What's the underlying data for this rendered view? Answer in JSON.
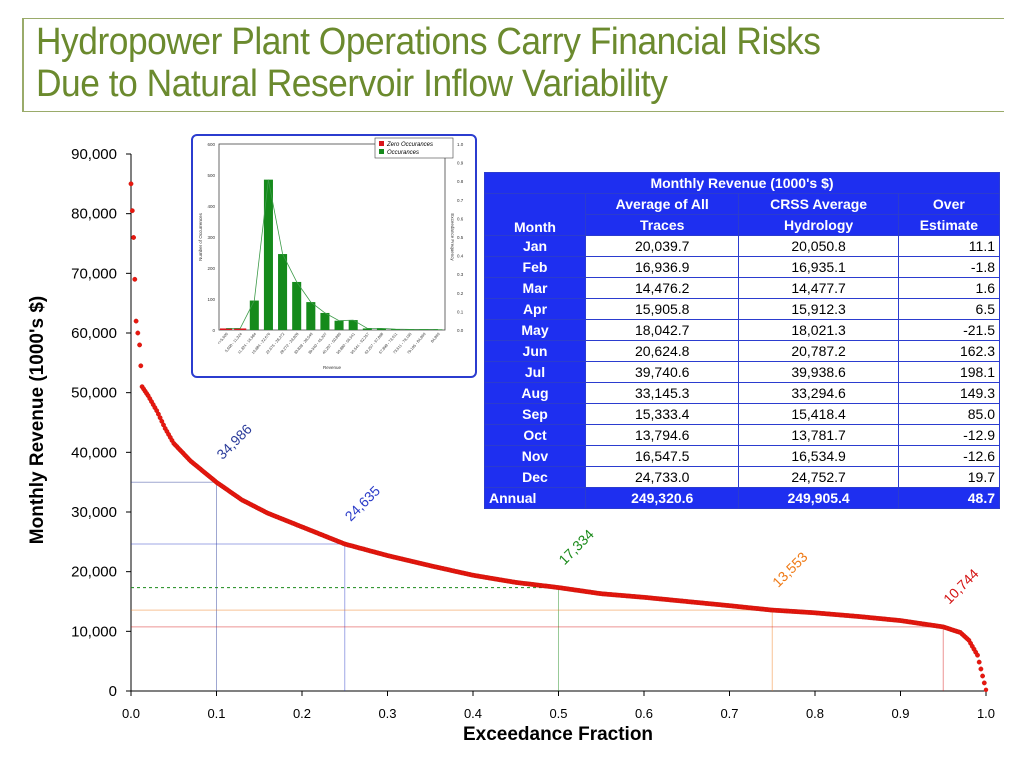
{
  "title": {
    "line1": "Hydropower Plant Operations Carry Financial Risks",
    "line2": "Due to Natural Reservoir Inflow Variability"
  },
  "colors": {
    "title": "#6b8a2e",
    "curve": "#e8170f",
    "table_header": "#1e2ff0",
    "inset_bar": "#158a1b",
    "inset_zero_bar": "#d9151b"
  },
  "chart_data": [
    {
      "type": "scatter",
      "xlabel": "Exceedance Fraction",
      "ylabel": "Monthly Revenue (1000's $)",
      "xlim": [
        0.0,
        1.0
      ],
      "ylim": [
        0,
        90000
      ],
      "x_ticks": [
        "0.0",
        "0.1",
        "0.2",
        "0.3",
        "0.4",
        "0.5",
        "0.6",
        "0.7",
        "0.8",
        "0.9",
        "1.0"
      ],
      "y_ticks": [
        "0",
        "10,000",
        "20,000",
        "30,000",
        "40,000",
        "50,000",
        "60,000",
        "70,000",
        "80,000",
        "90,000"
      ],
      "grid": false,
      "curve_points": [
        [
          0.0,
          85000
        ],
        [
          0.003,
          76000
        ],
        [
          0.006,
          62000
        ],
        [
          0.01,
          58000
        ],
        [
          0.013,
          51000
        ],
        [
          0.02,
          49500
        ],
        [
          0.03,
          47000
        ],
        [
          0.04,
          44000
        ],
        [
          0.05,
          41500
        ],
        [
          0.07,
          38500
        ],
        [
          0.1,
          34986
        ],
        [
          0.13,
          32000
        ],
        [
          0.16,
          29800
        ],
        [
          0.2,
          27500
        ],
        [
          0.25,
          24635
        ],
        [
          0.3,
          22700
        ],
        [
          0.35,
          21000
        ],
        [
          0.4,
          19400
        ],
        [
          0.45,
          18200
        ],
        [
          0.5,
          17334
        ],
        [
          0.55,
          16300
        ],
        [
          0.6,
          15700
        ],
        [
          0.65,
          15000
        ],
        [
          0.7,
          14300
        ],
        [
          0.75,
          13553
        ],
        [
          0.8,
          13100
        ],
        [
          0.85,
          12500
        ],
        [
          0.9,
          11800
        ],
        [
          0.95,
          10744
        ],
        [
          0.97,
          9800
        ],
        [
          0.98,
          8500
        ],
        [
          0.99,
          6000
        ],
        [
          1.0,
          200
        ]
      ],
      "annotations": [
        {
          "label": "34,986",
          "x": 0.1,
          "y": 34986,
          "color": "#2b3c9a"
        },
        {
          "label": "24,635",
          "x": 0.25,
          "y": 24635,
          "color": "#2b3cc8"
        },
        {
          "label": "17,334",
          "x": 0.5,
          "y": 17334,
          "color": "#1a8a1a"
        },
        {
          "label": "13,553",
          "x": 0.75,
          "y": 13553,
          "color": "#ef7a16"
        },
        {
          "label": "10,744",
          "x": 0.95,
          "y": 10744,
          "color": "#d41212"
        }
      ]
    },
    {
      "type": "bar",
      "xlabel": "Revenue",
      "ylabel": "Number of Occurrences",
      "y2label": "Exceedance Frequency",
      "legend": [
        "Zero Occurances",
        "Occurances"
      ],
      "legend_position": "top-right",
      "ylim": [
        0,
        600
      ],
      "y_ticks": [
        "0",
        "100",
        "200",
        "300",
        "400",
        "500",
        "600"
      ],
      "y2_ticks": [
        "0.0",
        "0.1",
        "0.2",
        "0.3",
        "0.4",
        "0.5",
        "0.6",
        "0.7",
        "0.8",
        "0.9",
        "1.0"
      ],
      "categories": [
        "<=5,600",
        "5,600 - 11,324",
        "11,324 - 16,984",
        "16,984 - 22,676",
        "22,676 - 28,272",
        "28,272 - 33,828",
        "33,828 - 39,540",
        "39,540 - 45,207",
        "45,207 - 50,880",
        "50,880 - 56,541",
        "56,541 - 62,257",
        "62,257 - 67,898",
        "67,898 - 73,611",
        "73,611 - 79,195",
        "79,195 - 84,860",
        "84,860"
      ],
      "zero_values": [
        5,
        5,
        0,
        0,
        0,
        0,
        0,
        0,
        0,
        0,
        0,
        0,
        0,
        0,
        0,
        0
      ],
      "values": [
        0,
        0,
        95,
        485,
        245,
        155,
        90,
        55,
        30,
        32,
        5,
        5,
        3,
        2,
        2,
        2
      ]
    }
  ],
  "table": {
    "title": "Monthly Revenue (1000's $)",
    "col_month": "Month",
    "col_avg_line1": "Average of All",
    "col_avg_line2": "Traces",
    "col_crss_line1": "CRSS Average",
    "col_crss_line2": "Hydrology",
    "col_over_line1": "Over",
    "col_over_line2": "Estimate",
    "rows": [
      {
        "month": "Jan",
        "avg": "20,039.7",
        "crss": "20,050.8",
        "over": "11.1"
      },
      {
        "month": "Feb",
        "avg": "16,936.9",
        "crss": "16,935.1",
        "over": "-1.8"
      },
      {
        "month": "Mar",
        "avg": "14,476.2",
        "crss": "14,477.7",
        "over": "1.6"
      },
      {
        "month": "Apr",
        "avg": "15,905.8",
        "crss": "15,912.3",
        "over": "6.5"
      },
      {
        "month": "May",
        "avg": "18,042.7",
        "crss": "18,021.3",
        "over": "-21.5"
      },
      {
        "month": "Jun",
        "avg": "20,624.8",
        "crss": "20,787.2",
        "over": "162.3"
      },
      {
        "month": "Jul",
        "avg": "39,740.6",
        "crss": "39,938.6",
        "over": "198.1"
      },
      {
        "month": "Aug",
        "avg": "33,145.3",
        "crss": "33,294.6",
        "over": "149.3"
      },
      {
        "month": "Sep",
        "avg": "15,333.4",
        "crss": "15,418.4",
        "over": "85.0"
      },
      {
        "month": "Oct",
        "avg": "13,794.6",
        "crss": "13,781.7",
        "over": "-12.9"
      },
      {
        "month": "Nov",
        "avg": "16,547.5",
        "crss": "16,534.9",
        "over": "-12.6"
      },
      {
        "month": "Dec",
        "avg": "24,733.0",
        "crss": "24,752.7",
        "over": "19.7"
      }
    ],
    "annual": {
      "month": "Annual",
      "avg": "249,320.6",
      "crss": "249,905.4",
      "over": "48.7"
    }
  }
}
